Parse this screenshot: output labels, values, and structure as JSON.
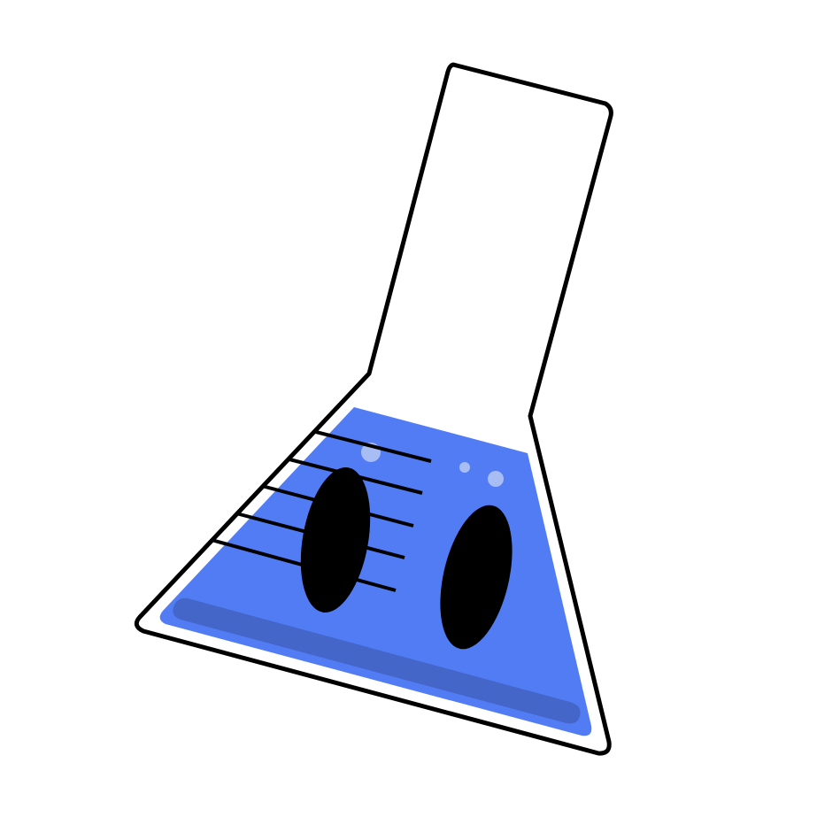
{
  "illustration": {
    "subject": "flask-character",
    "colors": {
      "background": "#ffffff",
      "glass": "#ffffff",
      "outline": "#000000",
      "liquid": "#527cf4",
      "liquid_shadow": "#4466c9",
      "bubble": "#a9bdf5",
      "eye": "#000000",
      "graduation": "#000000"
    },
    "graduation_count": 5,
    "bubble_count": 3,
    "eye_count": 2
  }
}
